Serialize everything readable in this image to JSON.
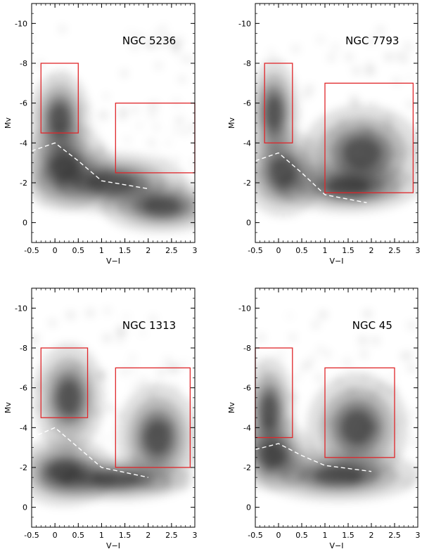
{
  "figure": {
    "colors": {
      "box": "#e0262a",
      "locus": "#ffffff",
      "axis": "#000000",
      "density": "#000000"
    }
  },
  "chart_data": [
    {
      "type": "heatmap",
      "title": "NGC 5236",
      "xlabel": "V−I",
      "ylabel": "Mv",
      "xlim": [
        -0.5,
        3.0
      ],
      "ylim": [
        1.0,
        -11.0
      ],
      "xticks": [
        -0.5,
        0.0,
        0.5,
        1.0,
        1.5,
        2.0,
        2.5,
        3.0
      ],
      "yticks": [
        0,
        -2,
        -4,
        -6,
        -8,
        -10
      ],
      "selection_boxes": [
        {
          "x0": -0.3,
          "x1": 0.5,
          "y0": -4.5,
          "y1": -8.0
        },
        {
          "x0": 1.3,
          "x1": 3.0,
          "y0": -2.5,
          "y1": -6.0
        }
      ],
      "locus": [
        {
          "x": -0.5,
          "y": -3.6
        },
        {
          "x": 0.0,
          "y": -4.0
        },
        {
          "x": 0.5,
          "y": -3.1
        },
        {
          "x": 1.0,
          "y": -2.1
        },
        {
          "x": 2.0,
          "y": -1.7
        }
      ],
      "density_peaks": [
        {
          "x": 0.2,
          "y": -2.8,
          "w": 0.9,
          "h": 2.0
        },
        {
          "x": 1.2,
          "y": -2.0,
          "w": 1.5,
          "h": 1.4
        },
        {
          "x": 0.1,
          "y": -5.2,
          "w": 0.6,
          "h": 2.2
        },
        {
          "x": 2.3,
          "y": -0.8,
          "w": 1.2,
          "h": 1.2
        }
      ]
    },
    {
      "type": "heatmap",
      "title": "NGC 7793",
      "xlabel": "V−I",
      "ylabel": "Mv",
      "xlim": [
        -0.5,
        3.0
      ],
      "ylim": [
        1.0,
        -11.0
      ],
      "xticks": [
        -0.5,
        0.0,
        0.5,
        1.0,
        1.5,
        2.0,
        2.5,
        3.0
      ],
      "yticks": [
        0,
        -2,
        -4,
        -6,
        -8,
        -10
      ],
      "selection_boxes": [
        {
          "x0": -0.3,
          "x1": 0.3,
          "y0": -4.0,
          "y1": -8.0
        },
        {
          "x0": 1.0,
          "x1": 2.9,
          "y0": -1.5,
          "y1": -7.0
        }
      ],
      "locus": [
        {
          "x": -0.5,
          "y": -3.1
        },
        {
          "x": 0.0,
          "y": -3.5
        },
        {
          "x": 0.5,
          "y": -2.5
        },
        {
          "x": 1.0,
          "y": -1.4
        },
        {
          "x": 1.9,
          "y": -1.0
        }
      ],
      "density_peaks": [
        {
          "x": 0.1,
          "y": -2.5,
          "w": 0.8,
          "h": 2.0
        },
        {
          "x": 1.5,
          "y": -1.8,
          "w": 1.4,
          "h": 1.2
        },
        {
          "x": -0.1,
          "y": -5.5,
          "w": 0.5,
          "h": 2.5
        },
        {
          "x": 1.8,
          "y": -3.5,
          "w": 1.2,
          "h": 2.2
        }
      ]
    },
    {
      "type": "heatmap",
      "title": "NGC 1313",
      "xlabel": "V−I",
      "ylabel": "Mv",
      "xlim": [
        -0.5,
        3.0
      ],
      "ylim": [
        1.0,
        -11.0
      ],
      "xticks": [
        -0.5,
        0.0,
        0.5,
        1.0,
        1.5,
        2.0,
        2.5,
        3.0
      ],
      "yticks": [
        0,
        -2,
        -4,
        -6,
        -8,
        -10
      ],
      "selection_boxes": [
        {
          "x0": -0.3,
          "x1": 0.7,
          "y0": -4.5,
          "y1": -8.0
        },
        {
          "x0": 1.3,
          "x1": 2.9,
          "y0": -2.0,
          "y1": -7.0
        }
      ],
      "locus": [
        {
          "x": -0.5,
          "y": -3.5
        },
        {
          "x": 0.0,
          "y": -4.0
        },
        {
          "x": 0.5,
          "y": -3.0
        },
        {
          "x": 1.0,
          "y": -2.0
        },
        {
          "x": 2.0,
          "y": -1.5
        }
      ],
      "density_peaks": [
        {
          "x": 0.2,
          "y": -1.8,
          "w": 1.0,
          "h": 1.6
        },
        {
          "x": 1.3,
          "y": -1.4,
          "w": 1.5,
          "h": 1.0
        },
        {
          "x": 0.3,
          "y": -5.5,
          "w": 0.7,
          "h": 2.5
        },
        {
          "x": 2.2,
          "y": -3.5,
          "w": 0.8,
          "h": 2.5
        }
      ]
    },
    {
      "type": "heatmap",
      "title": "NGC 45",
      "xlabel": "V−I",
      "ylabel": "Mv",
      "xlim": [
        -0.5,
        3.0
      ],
      "ylim": [
        1.0,
        -11.0
      ],
      "xticks": [
        -0.5,
        0.0,
        0.5,
        1.0,
        1.5,
        2.0,
        2.5,
        3.0
      ],
      "yticks": [
        0,
        -2,
        -4,
        -6,
        -8,
        -10
      ],
      "selection_boxes": [
        {
          "x0": -0.5,
          "x1": 0.3,
          "y0": -3.5,
          "y1": -8.0
        },
        {
          "x0": 1.0,
          "x1": 2.5,
          "y0": -2.5,
          "y1": -7.0
        }
      ],
      "locus": [
        {
          "x": -0.5,
          "y": -2.9
        },
        {
          "x": 0.0,
          "y": -3.2
        },
        {
          "x": 0.5,
          "y": -2.6
        },
        {
          "x": 1.0,
          "y": -2.1
        },
        {
          "x": 2.0,
          "y": -1.8
        }
      ],
      "density_peaks": [
        {
          "x": -0.1,
          "y": -2.6,
          "w": 0.8,
          "h": 1.6
        },
        {
          "x": 1.3,
          "y": -1.6,
          "w": 1.6,
          "h": 1.2
        },
        {
          "x": -0.2,
          "y": -4.8,
          "w": 0.5,
          "h": 2.5
        },
        {
          "x": 1.7,
          "y": -4.0,
          "w": 1.0,
          "h": 2.5
        }
      ]
    }
  ]
}
